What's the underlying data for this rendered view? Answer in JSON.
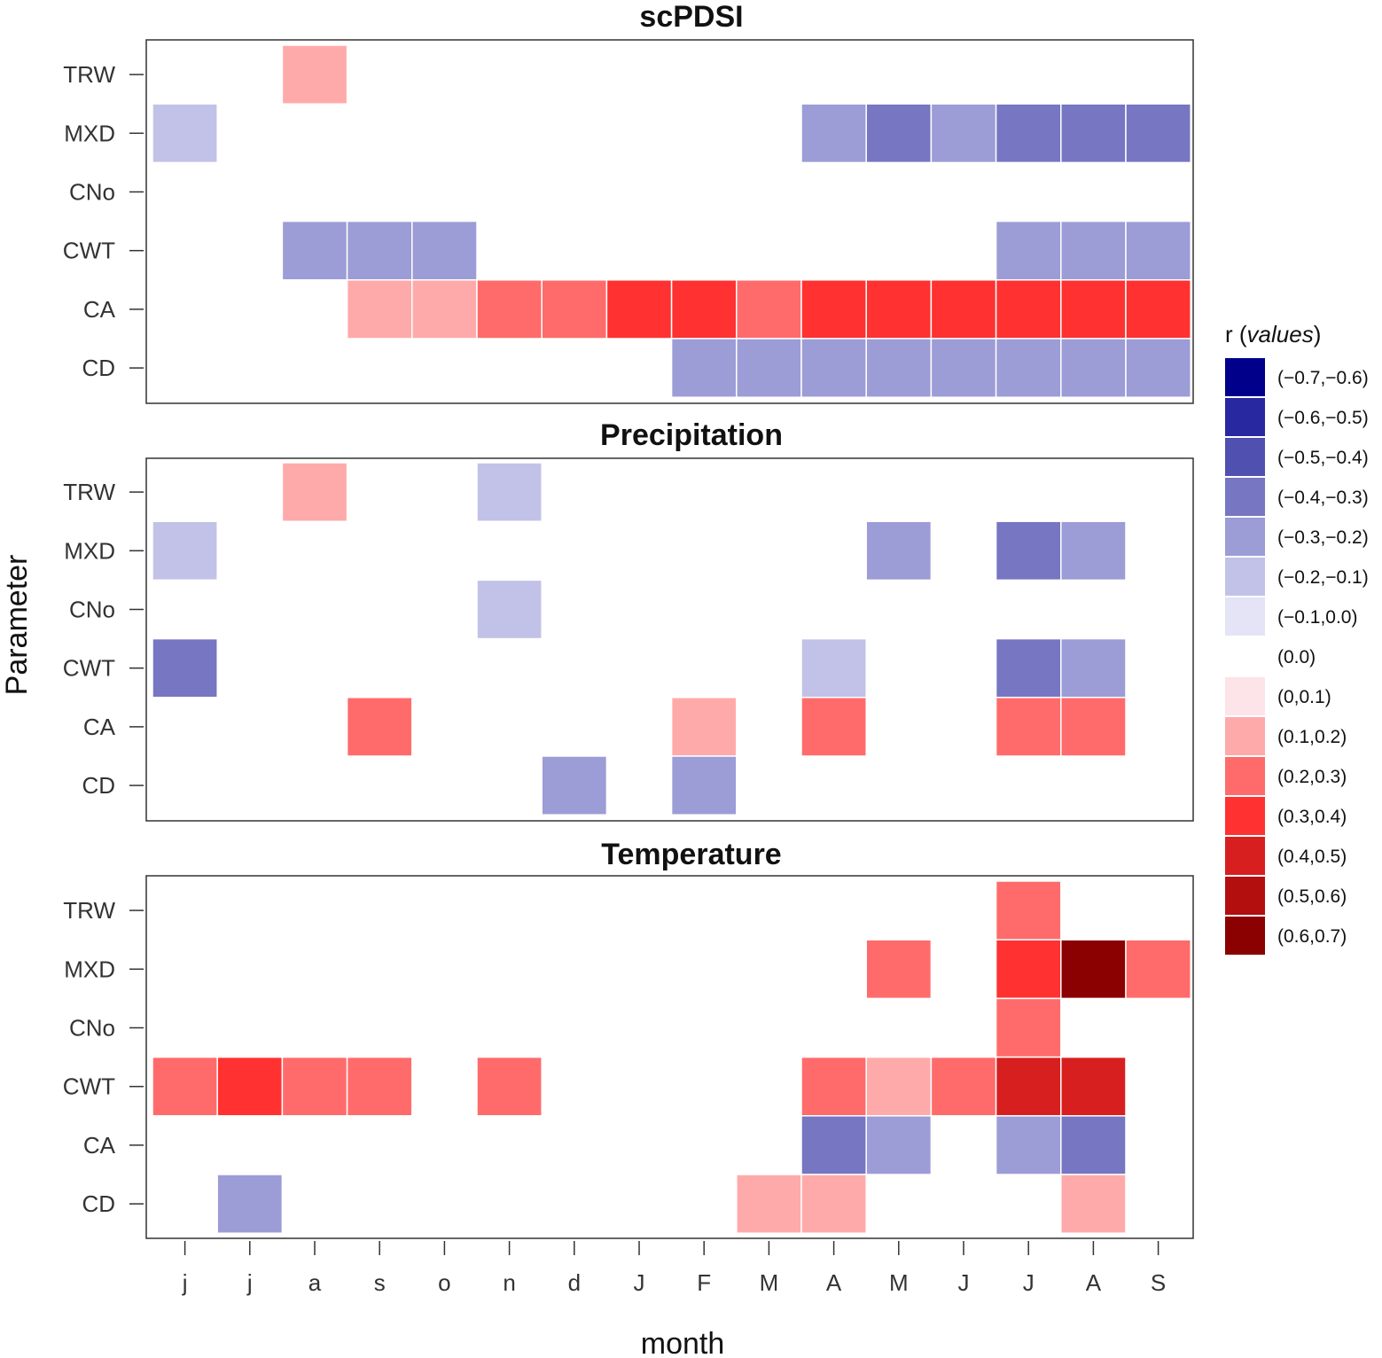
{
  "chart_data": {
    "type": "heatmap",
    "xlabel": "month",
    "ylabel": "Parameter",
    "months": [
      "j",
      "j",
      "a",
      "s",
      "o",
      "n",
      "d",
      "J",
      "F",
      "M",
      "A",
      "M",
      "J",
      "J",
      "A",
      "S"
    ],
    "parameters": [
      "TRW",
      "MXD",
      "CNo",
      "CWT",
      "CA",
      "CD"
    ],
    "legend": {
      "title_prefix": "r (",
      "title_italic": "values",
      "title_suffix": ")",
      "entries": [
        {
          "label": "(−0.7,−0.6)",
          "color": "#00008b"
        },
        {
          "label": "(−0.6,−0.5)",
          "color": "#2828a0"
        },
        {
          "label": "(−0.5,−0.4)",
          "color": "#5050b0"
        },
        {
          "label": "(−0.4,−0.3)",
          "color": "#7676c2"
        },
        {
          "label": "(−0.3,−0.2)",
          "color": "#9c9cd6"
        },
        {
          "label": "(−0.2,−0.1)",
          "color": "#c2c2e8"
        },
        {
          "label": "(−0.1,0.0)",
          "color": "#e4e4f6"
        },
        {
          "label": "(0.0)",
          "color": "#ffffff"
        },
        {
          "label": "(0,0.1)",
          "color": "#fde4e8"
        },
        {
          "label": "(0.1,0.2)",
          "color": "#ffaaaa"
        },
        {
          "label": "(0.2,0.3)",
          "color": "#ff6b6b"
        },
        {
          "label": "(0.3,0.4)",
          "color": "#ff3131"
        },
        {
          "label": "(0.4,0.5)",
          "color": "#d81f1f"
        },
        {
          "label": "(0.5,0.6)",
          "color": "#b30f0f"
        },
        {
          "label": "(0.6,0.7)",
          "color": "#8b0000"
        }
      ]
    },
    "panels": [
      {
        "title": "scPDSI",
        "values": [
          [
            0,
            0,
            0.15,
            0,
            0,
            0,
            0,
            0,
            0,
            0,
            0,
            0,
            0,
            0,
            0,
            0
          ],
          [
            -0.15,
            0,
            0,
            0,
            0,
            0,
            0,
            0,
            0,
            0,
            -0.25,
            -0.35,
            -0.25,
            -0.35,
            -0.35,
            -0.35
          ],
          [
            0,
            0,
            0,
            0,
            0,
            0,
            0,
            0,
            0,
            0,
            0,
            0,
            0,
            0,
            0,
            0
          ],
          [
            0,
            0,
            -0.25,
            -0.25,
            -0.25,
            0,
            0,
            0,
            0,
            0,
            0,
            0,
            0,
            -0.25,
            -0.25,
            -0.25
          ],
          [
            0,
            0,
            0,
            0.15,
            0.15,
            0.25,
            0.25,
            0.35,
            0.35,
            0.25,
            0.35,
            0.35,
            0.35,
            0.35,
            0.35,
            0.35
          ],
          [
            0,
            0,
            0,
            0,
            0,
            0,
            0,
            0,
            -0.25,
            -0.25,
            -0.25,
            -0.25,
            -0.25,
            -0.25,
            -0.25,
            -0.25
          ]
        ]
      },
      {
        "title": "Precipitation",
        "values": [
          [
            0,
            0,
            0.15,
            0,
            0,
            -0.15,
            0,
            0,
            0,
            0,
            0,
            0,
            0,
            0,
            0,
            0
          ],
          [
            -0.15,
            0,
            0,
            0,
            0,
            0,
            0,
            0,
            0,
            0,
            0,
            -0.25,
            0,
            -0.35,
            -0.25,
            0
          ],
          [
            0,
            0,
            0,
            0,
            0,
            -0.15,
            0,
            0,
            0,
            0,
            0,
            0,
            0,
            0,
            0,
            0
          ],
          [
            -0.35,
            0,
            0,
            0,
            0,
            0,
            0,
            0,
            0,
            0,
            -0.15,
            0,
            0,
            -0.35,
            -0.25,
            0
          ],
          [
            0,
            0,
            0,
            0.25,
            0,
            0,
            0,
            0,
            0.15,
            0,
            0.25,
            0,
            0,
            0.25,
            0.25,
            0
          ],
          [
            0,
            0,
            0,
            0,
            0,
            0,
            -0.25,
            0,
            -0.25,
            0,
            0,
            0,
            0,
            0,
            0,
            0
          ]
        ]
      },
      {
        "title": "Temperature",
        "values": [
          [
            0,
            0,
            0,
            0,
            0,
            0,
            0,
            0,
            0,
            0,
            0,
            0,
            0,
            0.25,
            0,
            0
          ],
          [
            0,
            0,
            0,
            0,
            0,
            0,
            0,
            0,
            0,
            0,
            0,
            0.25,
            0,
            0.35,
            0.65,
            0.25
          ],
          [
            0,
            0,
            0,
            0,
            0,
            0,
            0,
            0,
            0,
            0,
            0,
            0,
            0,
            0.25,
            0,
            0
          ],
          [
            0.25,
            0.35,
            0.25,
            0.25,
            0,
            0.25,
            0,
            0,
            0,
            0,
            0.25,
            0.15,
            0.25,
            0.45,
            0.45,
            0
          ],
          [
            0,
            0,
            0,
            0,
            0,
            0,
            0,
            0,
            0,
            0,
            -0.35,
            -0.25,
            0,
            -0.25,
            -0.35,
            0
          ],
          [
            0,
            -0.25,
            0,
            0,
            0,
            0,
            0,
            0,
            0,
            0.15,
            0.15,
            0,
            0,
            0,
            0.15,
            0
          ]
        ]
      }
    ]
  }
}
